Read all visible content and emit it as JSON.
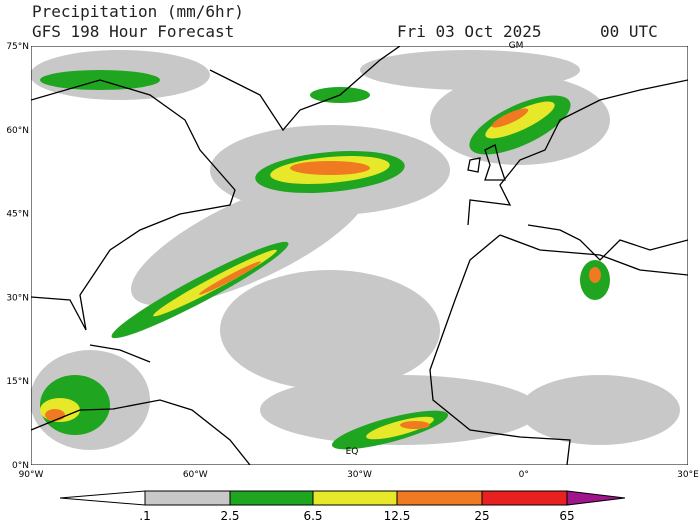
{
  "header": {
    "title": "Precipitation (mm/6hr)",
    "subtitle": "GFS 198 Hour Forecast",
    "date": "Fri 03 Oct 2025",
    "time": "00 UTC"
  },
  "map": {
    "lat_labels": [
      "75°N",
      "60°N",
      "45°N",
      "30°N",
      "15°N",
      "0°N"
    ],
    "lon_labels": [
      "90°W",
      "60°W",
      "30°W",
      "0°",
      "30°E"
    ],
    "annotations": [
      "GM",
      "EQ"
    ]
  },
  "colorbar": {
    "labels": [
      ".1",
      "2.5",
      "6.5",
      "12.5",
      "25",
      "65"
    ]
  }
}
